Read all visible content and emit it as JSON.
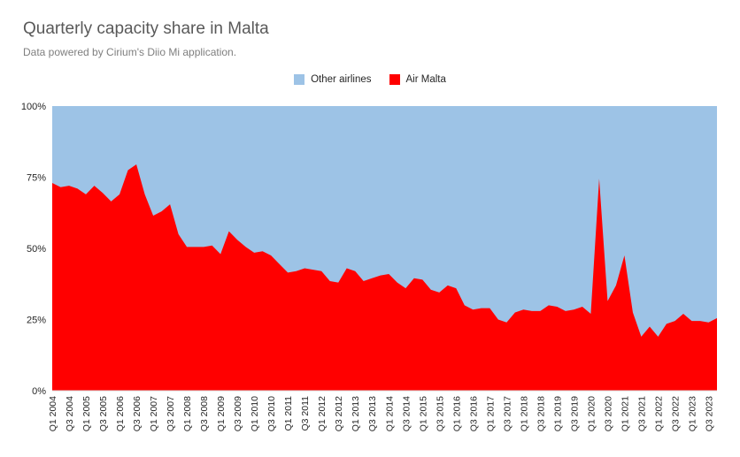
{
  "title": "Quarterly capacity share in Malta",
  "subtitle": "Data powered by Cirium's Diio Mi application.",
  "colors": {
    "other": "#9dc3e6",
    "airmalta": "#ff0000"
  },
  "chart_data": {
    "type": "area",
    "title": "Quarterly capacity share in Malta",
    "stacked": "percent",
    "ylim": [
      0,
      100
    ],
    "yticks": [
      "0%",
      "25%",
      "50%",
      "75%",
      "100%"
    ],
    "legend_position": "top",
    "x": [
      "Q1 2004",
      "Q2 2004",
      "Q3 2004",
      "Q4 2004",
      "Q1 2005",
      "Q2 2005",
      "Q3 2005",
      "Q4 2005",
      "Q1 2006",
      "Q2 2006",
      "Q3 2006",
      "Q4 2006",
      "Q1 2007",
      "Q2 2007",
      "Q3 2007",
      "Q4 2007",
      "Q1 2008",
      "Q2 2008",
      "Q3 2008",
      "Q4 2008",
      "Q1 2009",
      "Q2 2009",
      "Q3 2009",
      "Q4 2009",
      "Q1 2010",
      "Q2 2010",
      "Q3 2010",
      "Q4 2010",
      "Q1 2011",
      "Q2 2011",
      "Q3 2011",
      "Q4 2011",
      "Q1 2012",
      "Q2 2012",
      "Q3 2012",
      "Q4 2012",
      "Q1 2013",
      "Q2 2013",
      "Q3 2013",
      "Q4 2013",
      "Q1 2014",
      "Q2 2014",
      "Q3 2014",
      "Q4 2014",
      "Q1 2015",
      "Q2 2015",
      "Q3 2015",
      "Q4 2015",
      "Q1 2016",
      "Q2 2016",
      "Q3 2016",
      "Q4 2016",
      "Q1 2017",
      "Q2 2017",
      "Q3 2017",
      "Q4 2017",
      "Q1 2018",
      "Q2 2018",
      "Q3 2018",
      "Q4 2018",
      "Q1 2019",
      "Q2 2019",
      "Q3 2019",
      "Q4 2019",
      "Q1 2020",
      "Q2 2020",
      "Q3 2020",
      "Q4 2020",
      "Q1 2021",
      "Q2 2021",
      "Q3 2021",
      "Q4 2021",
      "Q1 2022",
      "Q2 2022",
      "Q3 2022",
      "Q4 2022",
      "Q1 2023",
      "Q2 2023",
      "Q3 2023",
      "Q4 2023"
    ],
    "x_tick_labels": [
      "Q1 2004",
      "Q3 2004",
      "Q1 2005",
      "Q3 2005",
      "Q1 2006",
      "Q3 2006",
      "Q1 2007",
      "Q3 2007",
      "Q1 2008",
      "Q3 2008",
      "Q1 2009",
      "Q3 2009",
      "Q1 2010",
      "Q3 2010",
      "Q1 2011",
      "Q3 2011",
      "Q1 2012",
      "Q3 2012",
      "Q1 2013",
      "Q3 2013",
      "Q1 2014",
      "Q3 2014",
      "Q1 2015",
      "Q3 2015",
      "Q1 2016",
      "Q3 2016",
      "Q1 2017",
      "Q3 2017",
      "Q1 2018",
      "Q3 2018",
      "Q1 2019",
      "Q3 2019",
      "Q1 2020",
      "Q3 2020",
      "Q1 2021",
      "Q3 2021",
      "Q1 2022",
      "Q3 2022",
      "Q1 2023",
      "Q3 2023"
    ],
    "series": [
      {
        "name": "Air Malta",
        "values": [
          73,
          71.5,
          72,
          71,
          69,
          72,
          69.5,
          66.5,
          69,
          77.5,
          79.5,
          69,
          61.5,
          63,
          65.5,
          55,
          50.5,
          50.5,
          50.5,
          51,
          48,
          56,
          53,
          50.5,
          48.5,
          49,
          47.5,
          44.5,
          41.5,
          42,
          43,
          42.5,
          42,
          38.5,
          38,
          43,
          42,
          38.5,
          39.5,
          40.5,
          41,
          38,
          36,
          39.5,
          39,
          35.5,
          34.5,
          37,
          36,
          30,
          28.5,
          29,
          29,
          25,
          24,
          27.5,
          28.5,
          28,
          28,
          30,
          29.5,
          28,
          28.5,
          29.5,
          27,
          74.5,
          31.5,
          37,
          47.5,
          27.5,
          19,
          22.5,
          19,
          23.5,
          24.5,
          27,
          24.5,
          24.5,
          24,
          25.5
        ]
      },
      {
        "name": "Other airlines",
        "values": [
          27,
          28.5,
          28,
          29,
          31,
          28,
          30.5,
          33.5,
          31,
          22.5,
          20.5,
          31,
          38.5,
          37,
          34.5,
          45,
          49.5,
          49.5,
          49.5,
          49,
          52,
          44,
          47,
          49.5,
          51.5,
          51,
          52.5,
          55.5,
          58.5,
          58,
          57,
          57.5,
          58,
          61.5,
          62,
          57,
          58,
          61.5,
          60.5,
          59.5,
          59,
          62,
          64,
          60.5,
          61,
          64.5,
          65.5,
          63,
          64,
          70,
          71.5,
          71,
          71,
          75,
          76,
          72.5,
          71.5,
          72,
          72,
          70,
          70.5,
          72,
          71.5,
          70.5,
          73,
          25.5,
          68.5,
          63,
          52.5,
          72.5,
          81,
          77.5,
          81,
          76.5,
          75.5,
          73,
          75.5,
          75.5,
          76,
          74.5
        ]
      }
    ]
  },
  "legend": [
    {
      "label": "Other airlines",
      "color": "#9dc3e6"
    },
    {
      "label": "Air Malta",
      "color": "#ff0000"
    }
  ]
}
